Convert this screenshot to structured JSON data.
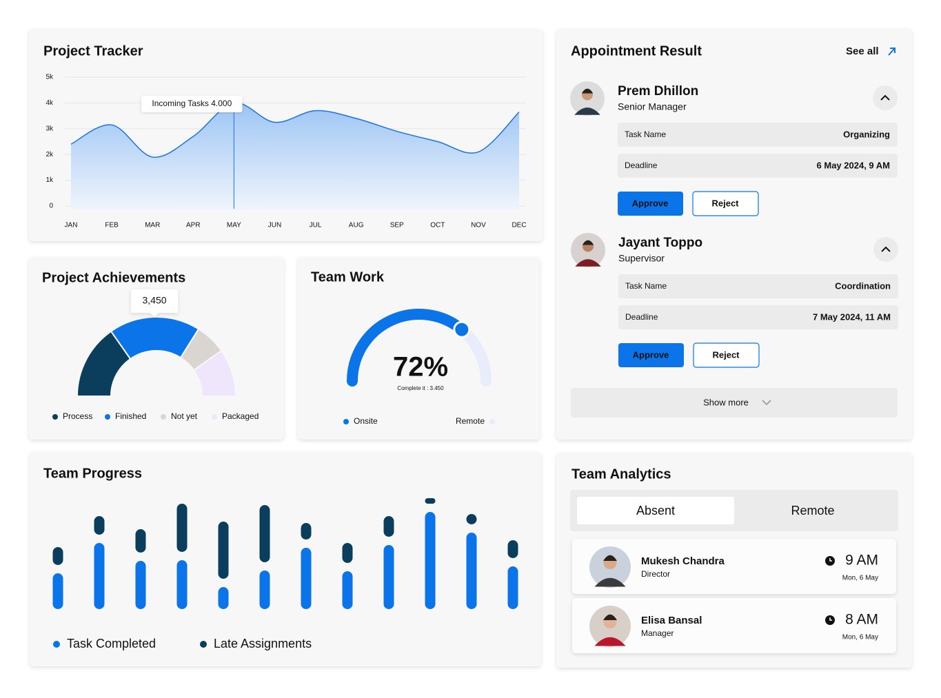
{
  "chart_data": [
    {
      "type": "area",
      "title": "Project Tracker",
      "categories": [
        "JAN",
        "FEB",
        "MAR",
        "APR",
        "MAY",
        "JUN",
        "JUL",
        "AUG",
        "SEP",
        "OCT",
        "NOV",
        "DEC"
      ],
      "values": [
        2400,
        3150,
        1900,
        2700,
        4000,
        3250,
        3700,
        3400,
        2900,
        2500,
        2100,
        3650
      ],
      "color": "#1a73e8",
      "ylim": [
        0,
        5000
      ],
      "yticks": [
        0,
        {
          "value": 1000,
          "label": "1k"
        },
        {
          "value": 2000,
          "label": "2k"
        },
        {
          "value": 3000,
          "label": "3k"
        },
        {
          "value": 4000,
          "label": "4k"
        },
        {
          "value": 5000,
          "label": "5k"
        }
      ],
      "grid": true,
      "annotation": "Incoming Tasks 4.000"
    },
    {
      "type": "semi-donut",
      "title": "Project Achievements",
      "categories": [
        "Process",
        "Finished",
        "Not yet",
        "Packaged"
      ],
      "values": [
        2830,
        3450,
        1180,
        1800
      ],
      "value_labels": [
        null,
        "3,450",
        null,
        null
      ],
      "colors": [
        "#0b3d5c",
        "#0a74e8",
        "#d9d6d2",
        "#efe6fb"
      ]
    },
    {
      "type": "gauge",
      "title": "Team Work",
      "value": 72,
      "value_label": "72%",
      "range": [
        0,
        100
      ],
      "subtitle": "Complete it : 3.450",
      "categories": [
        "Onsite",
        "Remote"
      ],
      "colors": [
        "#0a74e8",
        "#e8ecfb"
      ]
    },
    {
      "type": "stacked-bar",
      "title": "Team Progress",
      "categories": [
        null,
        null,
        null,
        null,
        null,
        null,
        null,
        null,
        null,
        null,
        null,
        null
      ],
      "series": [
        {
          "name": "Task Completed",
          "color": "#0a74e8",
          "values": [
            52,
            96,
            70,
            71,
            32,
            56,
            89,
            55,
            93,
            141,
            111,
            62
          ]
        },
        {
          "name": "Late Assignments",
          "color": "#0b3d5c",
          "values": [
            26,
            27,
            34,
            70,
            83,
            83,
            24,
            29,
            30,
            8,
            15,
            26
          ]
        }
      ],
      "ylim": [
        0,
        160
      ]
    }
  ],
  "appointment": {
    "title": "Appointment Result",
    "see_all": "See all",
    "show_more": "Show more",
    "items": [
      {
        "name": "Prem Dhillon",
        "role": "Senior Manager",
        "task_label": "Task Name",
        "task": "Organizing",
        "deadline_label": "Deadline",
        "deadline": "6 May 2024, 9 AM",
        "approve": "Approve",
        "reject": "Reject"
      },
      {
        "name": "Jayant Toppo",
        "role": "Supervisor",
        "task_label": "Task Name",
        "task": "Coordination",
        "deadline_label": "Deadline",
        "deadline": "7 May 2024, 11 AM",
        "approve": "Approve",
        "reject": "Reject"
      }
    ]
  },
  "team_analytics": {
    "title": "Team Analytics",
    "tabs": [
      "Absent",
      "Remote"
    ],
    "people": [
      {
        "name": "Mukesh Chandra",
        "role": "Director",
        "time": "9 AM",
        "date": "Mon, 6 May"
      },
      {
        "name": "Elisa Bansal",
        "role": "Manager",
        "time": "8 AM",
        "date": "Mon, 6 May"
      }
    ]
  }
}
